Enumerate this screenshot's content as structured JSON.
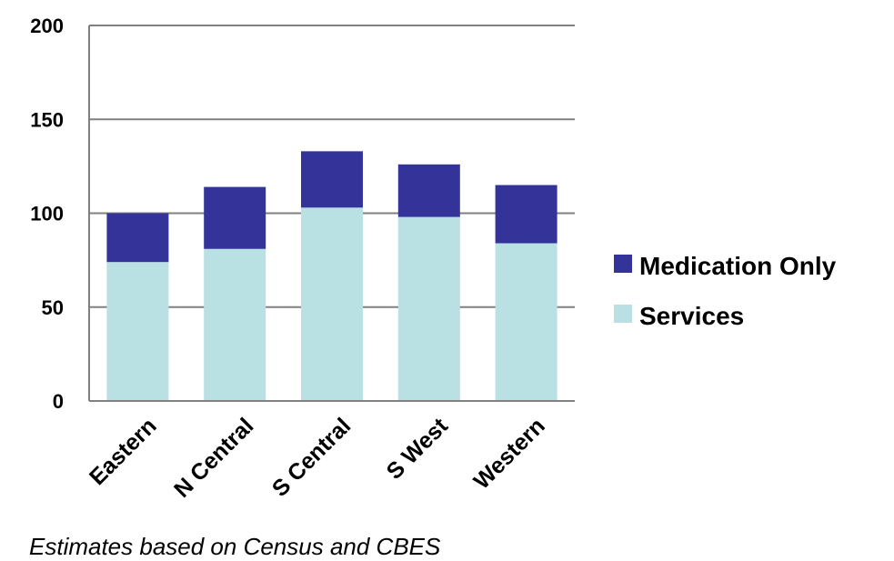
{
  "chart_data": {
    "type": "bar",
    "stacked": true,
    "categories": [
      "Eastern",
      "N Central",
      "S Central",
      "S West",
      "Western"
    ],
    "series": [
      {
        "name": "Services",
        "values": [
          74,
          81,
          103,
          98,
          84
        ],
        "color": "#b9e0e3"
      },
      {
        "name": "Medication Only",
        "values": [
          26,
          33,
          30,
          28,
          31
        ],
        "color": "#333399"
      }
    ],
    "ylim": [
      0,
      200
    ],
    "yticks": [
      0,
      50,
      100,
      150,
      200
    ],
    "grid": true,
    "legend": "right",
    "title": "",
    "xlabel": "",
    "ylabel": ""
  },
  "footnote": "Estimates based on Census and CBES"
}
